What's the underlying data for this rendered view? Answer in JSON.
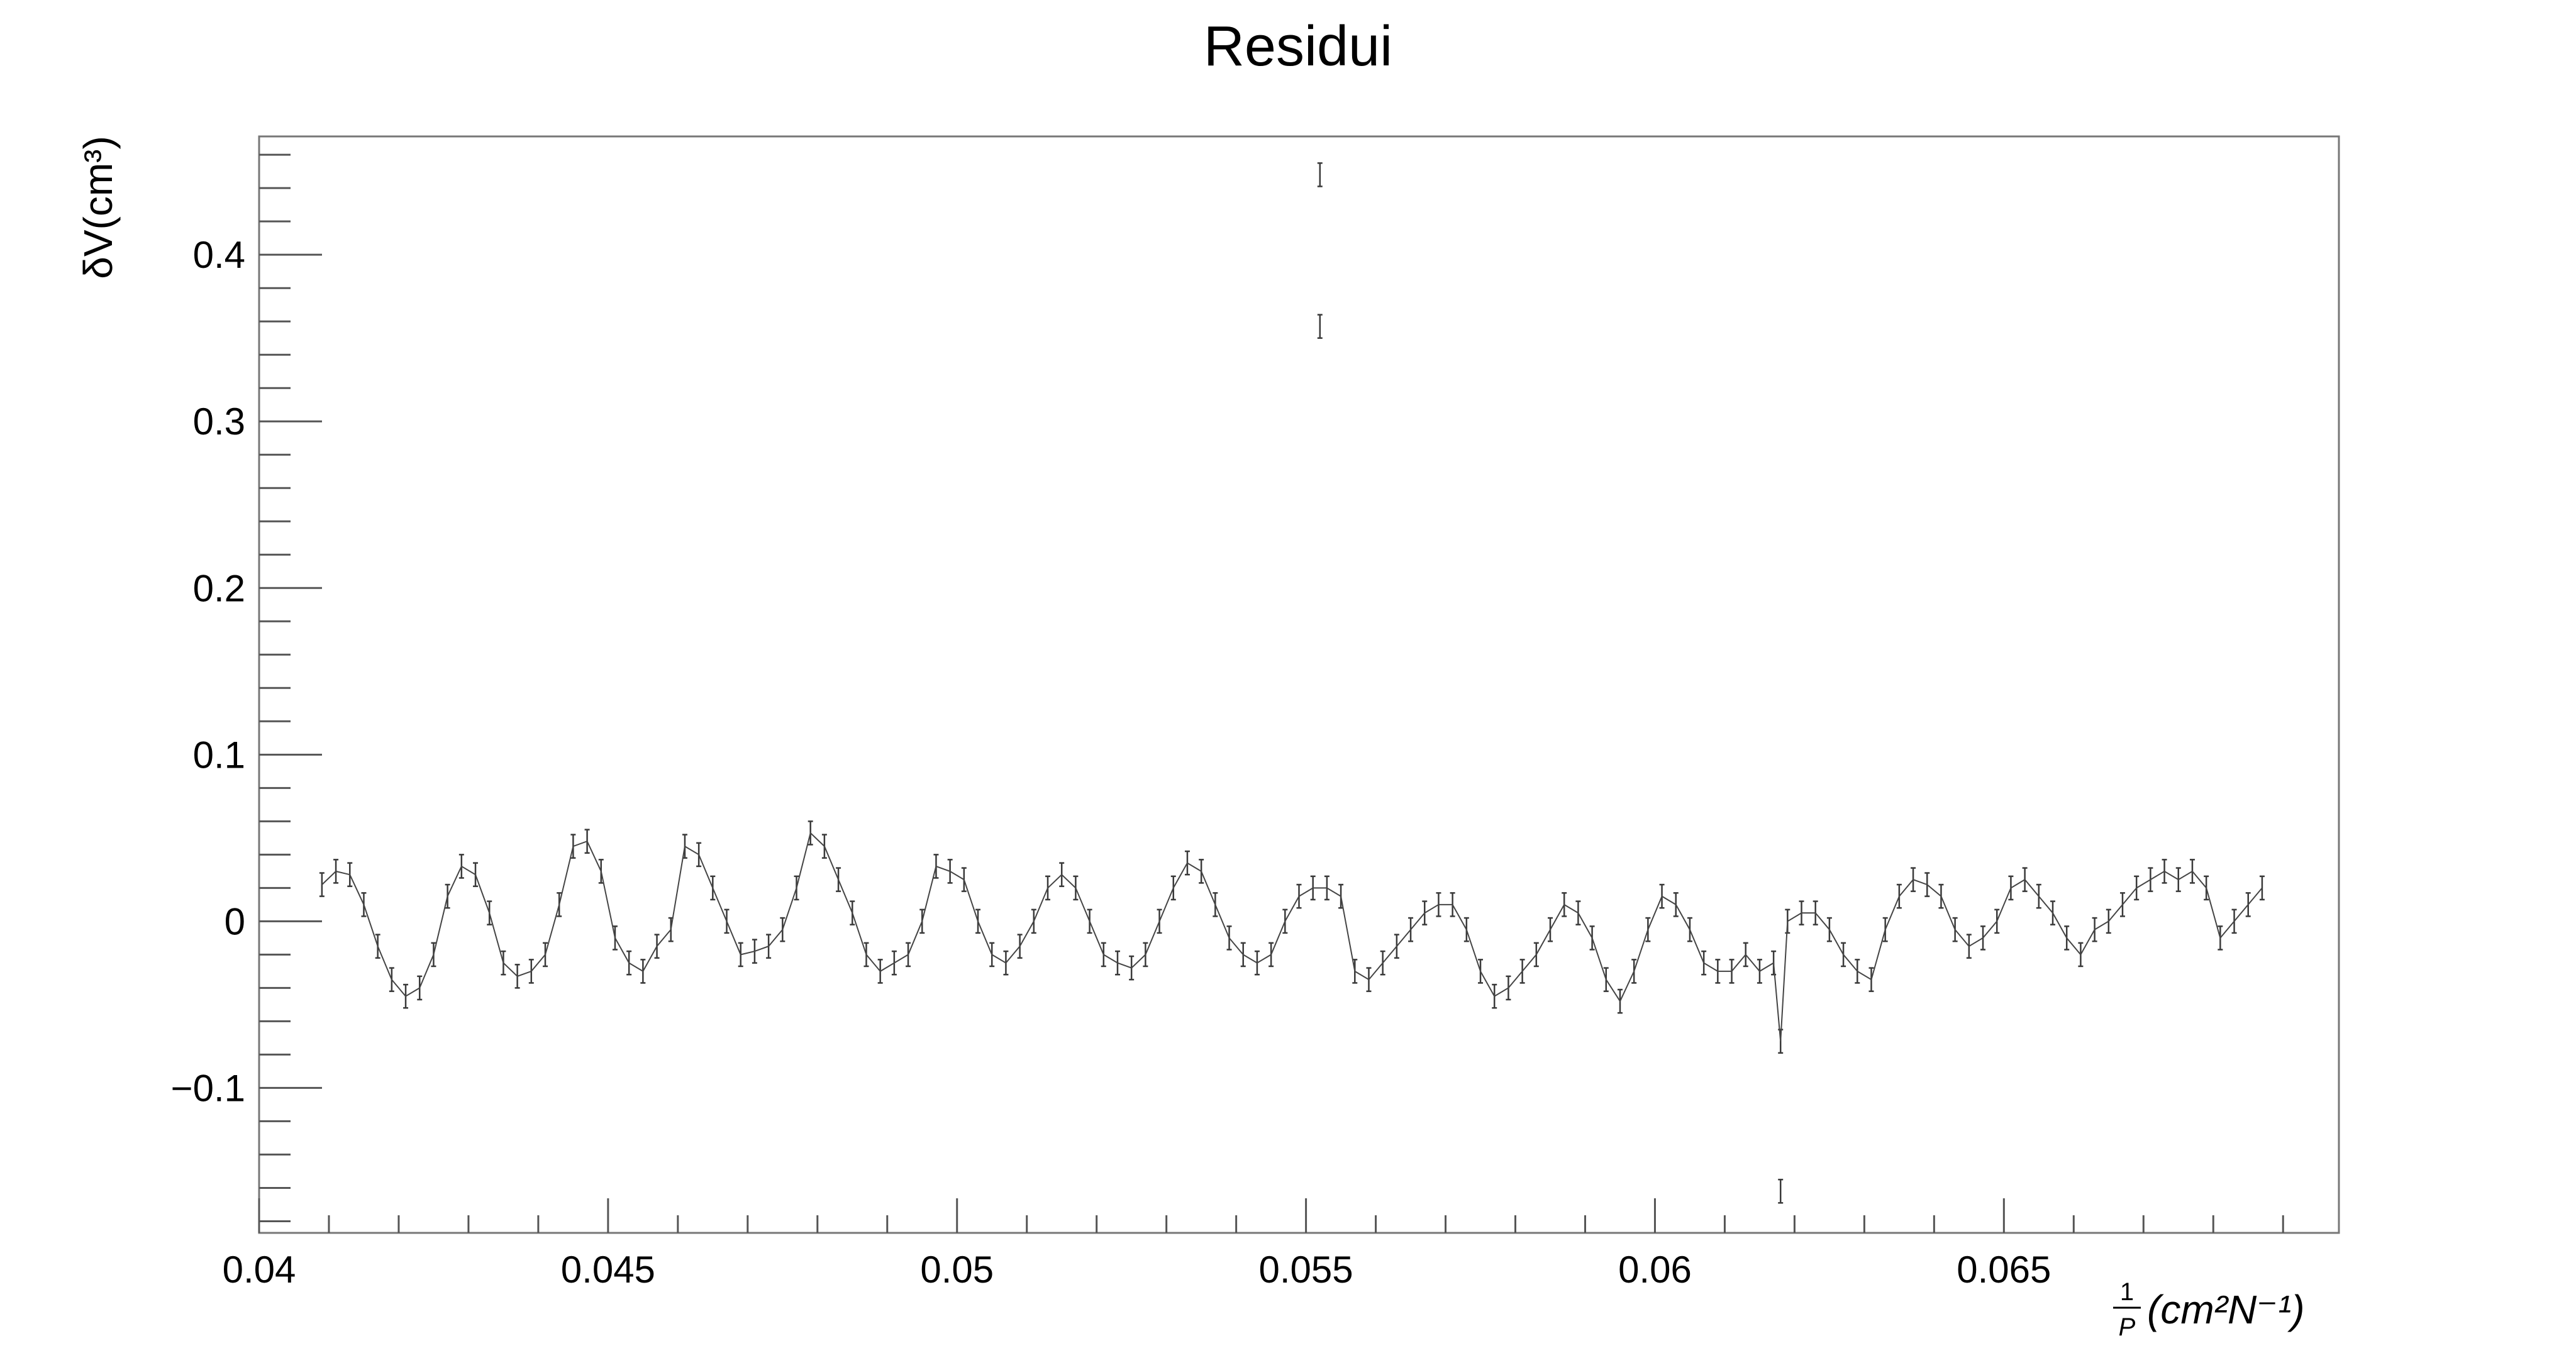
{
  "chart_data": {
    "type": "scatter",
    "title": "Residui",
    "xlabel": "(cm²N⁻¹)",
    "xlabel_fraction_numerator": "1",
    "xlabel_fraction_denominator": "P",
    "ylabel": "δV(cm³)",
    "xlim": [
      0.04,
      0.0698
    ],
    "ylim": [
      -0.187,
      0.471
    ],
    "x_tick_labels": [
      "0.04",
      "0.045",
      "0.05",
      "0.055",
      "0.06",
      "0.065"
    ],
    "x_ticks": [
      0.04,
      0.045,
      0.05,
      0.055,
      0.06,
      0.065
    ],
    "y_tick_labels": [
      "−0.1",
      "0",
      "0.1",
      "0.2",
      "0.3",
      "0.4"
    ],
    "y_ticks": [
      -0.1,
      0,
      0.1,
      0.2,
      0.3,
      0.4
    ],
    "grid": false,
    "marker": "error-bar",
    "error_half_width": 0.007,
    "series": [
      {
        "x": [
          0.0409,
          0.0411,
          0.0413,
          0.0415,
          0.0417,
          0.0419,
          0.0421,
          0.0423,
          0.0425,
          0.0427,
          0.0429,
          0.0431,
          0.0433,
          0.0435,
          0.0437,
          0.0439,
          0.0441,
          0.0443,
          0.0445,
          0.0447,
          0.0449,
          0.0451,
          0.0453,
          0.0455,
          0.0457,
          0.0459,
          0.0461,
          0.0463,
          0.0465,
          0.0467,
          0.0469,
          0.0471,
          0.0473,
          0.0475,
          0.0477,
          0.0479,
          0.0481,
          0.0483,
          0.0485,
          0.0487,
          0.0489,
          0.0491,
          0.0493,
          0.0495,
          0.0497,
          0.0499,
          0.0501,
          0.0503,
          0.0505,
          0.0507,
          0.0509,
          0.0511,
          0.0513,
          0.0515,
          0.0517,
          0.0519,
          0.0521,
          0.0523,
          0.0525,
          0.0527,
          0.0529,
          0.0531,
          0.0533,
          0.0535,
          0.0537,
          0.0539,
          0.0541,
          0.0543,
          0.0545,
          0.0547,
          0.0549,
          0.0551,
          0.0552,
          0.0552,
          0.0553,
          0.0555,
          0.0557,
          0.0559,
          0.0561,
          0.0563,
          0.0565,
          0.0567,
          0.0569,
          0.0571,
          0.0573,
          0.0575,
          0.0577,
          0.0579,
          0.0581,
          0.0583,
          0.0585,
          0.0587,
          0.0589,
          0.0591,
          0.0593,
          0.0595,
          0.0597,
          0.0599,
          0.0601,
          0.0603,
          0.0605,
          0.0607,
          0.0609,
          0.0611,
          0.0613,
          0.0615,
          0.0617,
          0.0618,
          0.0618,
          0.0619,
          0.0621,
          0.0623,
          0.0625,
          0.0627,
          0.0629,
          0.0631,
          0.0633,
          0.0635,
          0.0637,
          0.0639,
          0.0641,
          0.0643,
          0.0645,
          0.0647,
          0.0649,
          0.0651,
          0.0653,
          0.0655,
          0.0657,
          0.0659,
          0.0661,
          0.0663,
          0.0665,
          0.0667,
          0.0669,
          0.0671,
          0.0673,
          0.0675,
          0.0677,
          0.0679,
          0.0681,
          0.0683,
          0.0685,
          0.0687
        ],
        "y": [
          0.022,
          0.03,
          0.028,
          0.01,
          -0.015,
          -0.035,
          -0.045,
          -0.04,
          -0.02,
          0.015,
          0.033,
          0.028,
          0.005,
          -0.025,
          -0.033,
          -0.03,
          -0.02,
          0.01,
          0.045,
          0.048,
          0.03,
          -0.01,
          -0.025,
          -0.03,
          -0.015,
          -0.005,
          0.045,
          0.04,
          0.02,
          0.0,
          -0.02,
          -0.018,
          -0.015,
          -0.005,
          0.02,
          0.053,
          0.045,
          0.025,
          0.005,
          -0.02,
          -0.03,
          -0.025,
          -0.02,
          0.0,
          0.033,
          0.03,
          0.025,
          0.0,
          -0.02,
          -0.025,
          -0.015,
          0.0,
          0.02,
          0.028,
          0.02,
          0.0,
          -0.02,
          -0.025,
          -0.028,
          -0.02,
          0.0,
          0.02,
          0.035,
          0.03,
          0.01,
          -0.01,
          -0.02,
          -0.025,
          -0.02,
          0.0,
          0.015,
          0.02,
          0.448,
          0.357,
          0.02,
          0.015,
          -0.03,
          -0.035,
          -0.025,
          -0.015,
          -0.005,
          0.005,
          0.01,
          0.01,
          -0.005,
          -0.03,
          -0.045,
          -0.04,
          -0.03,
          -0.02,
          -0.005,
          0.01,
          0.005,
          -0.01,
          -0.035,
          -0.048,
          -0.03,
          -0.005,
          0.015,
          0.01,
          -0.005,
          -0.025,
          -0.03,
          -0.03,
          -0.02,
          -0.03,
          -0.025,
          -0.072,
          -0.162,
          0.0,
          0.005,
          0.005,
          -0.005,
          -0.02,
          -0.03,
          -0.035,
          -0.005,
          0.015,
          0.025,
          0.022,
          0.015,
          -0.005,
          -0.015,
          -0.01,
          0.0,
          0.02,
          0.025,
          0.015,
          0.005,
          -0.01,
          -0.02,
          -0.005,
          0.0,
          0.01,
          0.02,
          0.025,
          0.03,
          0.025,
          0.03,
          0.02,
          -0.01,
          0.0,
          0.01,
          0.02
        ]
      }
    ]
  }
}
